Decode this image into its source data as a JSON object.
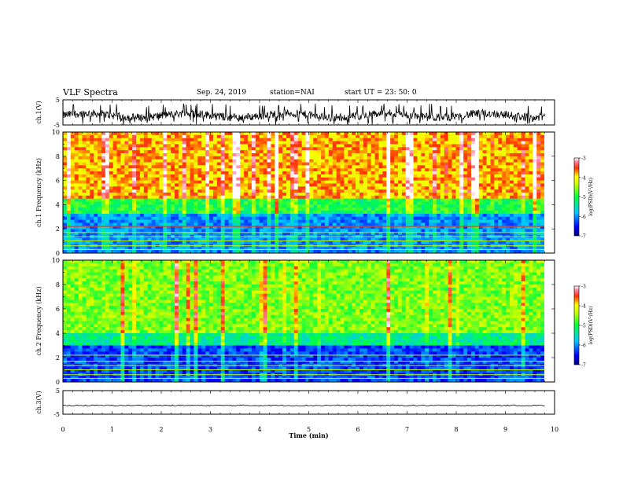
{
  "header": {
    "title": "VLF Spectra",
    "date": "Sep. 24, 2019",
    "station": "station=NAI",
    "start": "start  UT =   23: 50: 0"
  },
  "chart_data": [
    {
      "type": "line",
      "ylabel": "ch.1(V)",
      "ylim": [
        -5,
        5
      ],
      "yticks": [
        "5",
        "-5"
      ],
      "xlim": [
        0,
        10
      ],
      "series": [
        {
          "values_summary": {
            "mean": -1.2,
            "min": -5,
            "max": 3.5
          }
        }
      ]
    },
    {
      "type": "heatmap",
      "ylabel": "ch.1 Frequency (kHz)",
      "ylim": [
        0,
        10
      ],
      "yticks": [
        "0",
        "2",
        "4",
        "6",
        "8",
        "10"
      ],
      "xlim": [
        0,
        10
      ],
      "colorbar": {
        "label": "log(PSD)(V²/Hz)",
        "range": [
          -7,
          -3
        ],
        "ticks": [
          "-3",
          "-4",
          "-5",
          "-6",
          "-7"
        ]
      },
      "bands": [
        {
          "from_khz": 0,
          "to_khz": 3.2,
          "level": -6.0
        },
        {
          "from_khz": 3.2,
          "to_khz": 4.5,
          "level": -5.0
        },
        {
          "from_khz": 4.5,
          "to_khz": 10,
          "level": -3.8
        }
      ]
    },
    {
      "type": "heatmap",
      "ylabel": "ch.2 Frequency (kHz)",
      "ylim": [
        0,
        10
      ],
      "yticks": [
        "0",
        "2",
        "4",
        "6",
        "8",
        "10"
      ],
      "xlim": [
        0,
        10
      ],
      "colorbar": {
        "label": "log(PSD)(V²/Hz)",
        "range": [
          -7,
          -3
        ],
        "ticks": [
          "-3",
          "-4",
          "-5",
          "-6",
          "-7"
        ]
      },
      "bands": [
        {
          "from_khz": 0,
          "to_khz": 3.0,
          "level": -6.3
        },
        {
          "from_khz": 3.0,
          "to_khz": 4.0,
          "level": -5.3
        },
        {
          "from_khz": 4.0,
          "to_khz": 10,
          "level": -4.6
        }
      ]
    },
    {
      "type": "line",
      "ylabel": "ch.3(V)",
      "ylim": [
        -5,
        5
      ],
      "yticks": [
        "5",
        "-5"
      ],
      "xlim": [
        0,
        10
      ],
      "series": [
        {
          "values_summary": {
            "mean": -1.3,
            "min": -1.6,
            "max": -1.0
          }
        }
      ]
    }
  ],
  "xaxis": {
    "label": "Time  (min)",
    "ticks": [
      "0",
      "1",
      "2",
      "3",
      "4",
      "5",
      "6",
      "7",
      "8",
      "9",
      "10"
    ]
  }
}
